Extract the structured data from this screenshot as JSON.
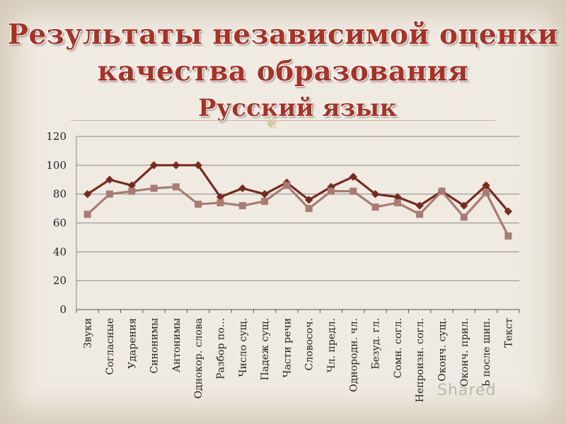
{
  "title_line1": "Результаты независимой оценки",
  "title_line2": "качества образования",
  "subtitle": "Русский язык",
  "watermark": "Shared",
  "chart_data": {
    "type": "line",
    "ylim": [
      0,
      120
    ],
    "yticks": [
      0,
      20,
      40,
      60,
      80,
      100,
      120
    ],
    "grid": true,
    "legend": "none",
    "categories": [
      "Звуки",
      "Согласные",
      "Ударения",
      "Синонимы",
      "Антонимы",
      "Однокор. слова",
      "Разбор по...",
      "Число сущ.",
      "Падеж сущ.",
      "Части речи",
      "Словосоч.",
      "Чл. предл.",
      "Однородн. чл.",
      "Безуд. гл.",
      "Сомн. согл.",
      "Непроизн. согл.",
      "Оконч. сущ.",
      "Оконч. прил.",
      "Ь после шип.",
      "Текст"
    ],
    "series": [
      {
        "color": "#7a2a1c",
        "marker": "diamond",
        "values": [
          80,
          90,
          86,
          100,
          100,
          100,
          78,
          84,
          80,
          88,
          76,
          85,
          92,
          80,
          78,
          72,
          82,
          72,
          86,
          68
        ]
      },
      {
        "color": "#a97b73",
        "marker": "square",
        "values": [
          66,
          80,
          82,
          84,
          85,
          73,
          74,
          72,
          75,
          86,
          70,
          82,
          82,
          71,
          74,
          66,
          82,
          64,
          81,
          51
        ]
      }
    ]
  }
}
